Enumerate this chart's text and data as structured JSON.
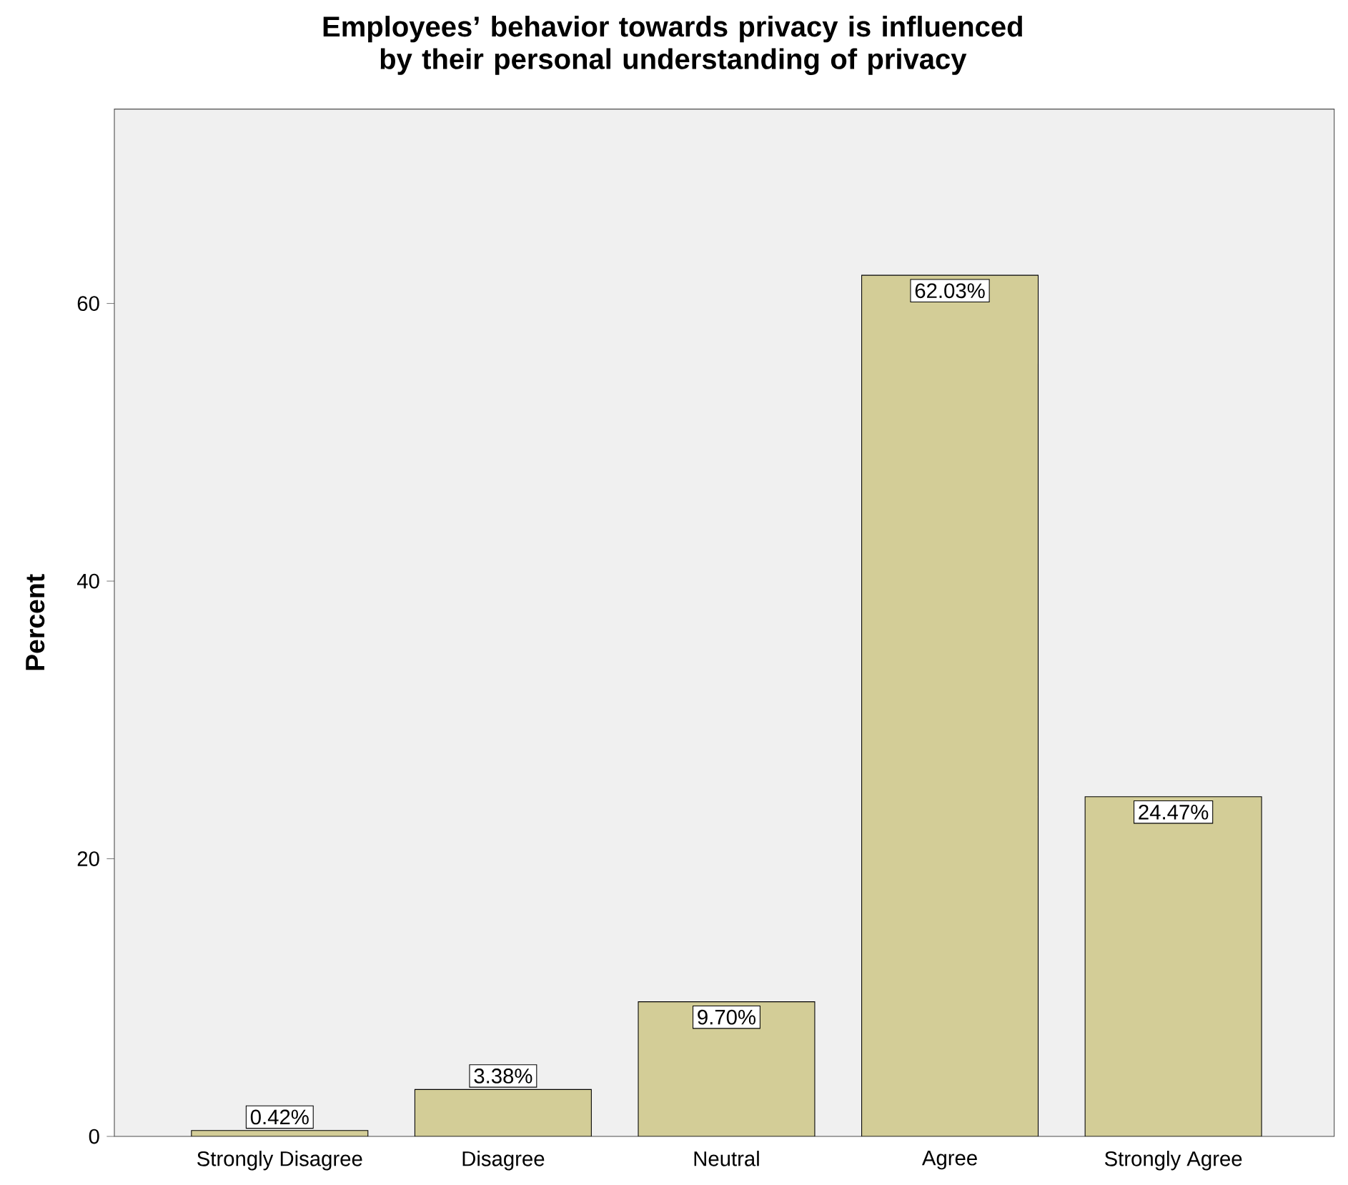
{
  "chart_data": {
    "type": "bar",
    "title": "Employees’ behavior towards privacy is influenced by their personal understanding of privacy",
    "ylabel": "Percent",
    "categories": [
      "Strongly Disagree",
      "Disagree",
      "Neutral",
      "Agree",
      "Strongly Agree"
    ],
    "values": [
      0.42,
      3.38,
      9.7,
      62.03,
      24.47
    ],
    "value_labels": [
      "0.42%",
      "3.38%",
      "9.70%",
      "62.03%",
      "24.47%"
    ],
    "color": "#d3cd97",
    "ylim": [
      0,
      74
    ],
    "yticks": [
      0,
      20,
      40,
      60
    ],
    "grid": false
  }
}
